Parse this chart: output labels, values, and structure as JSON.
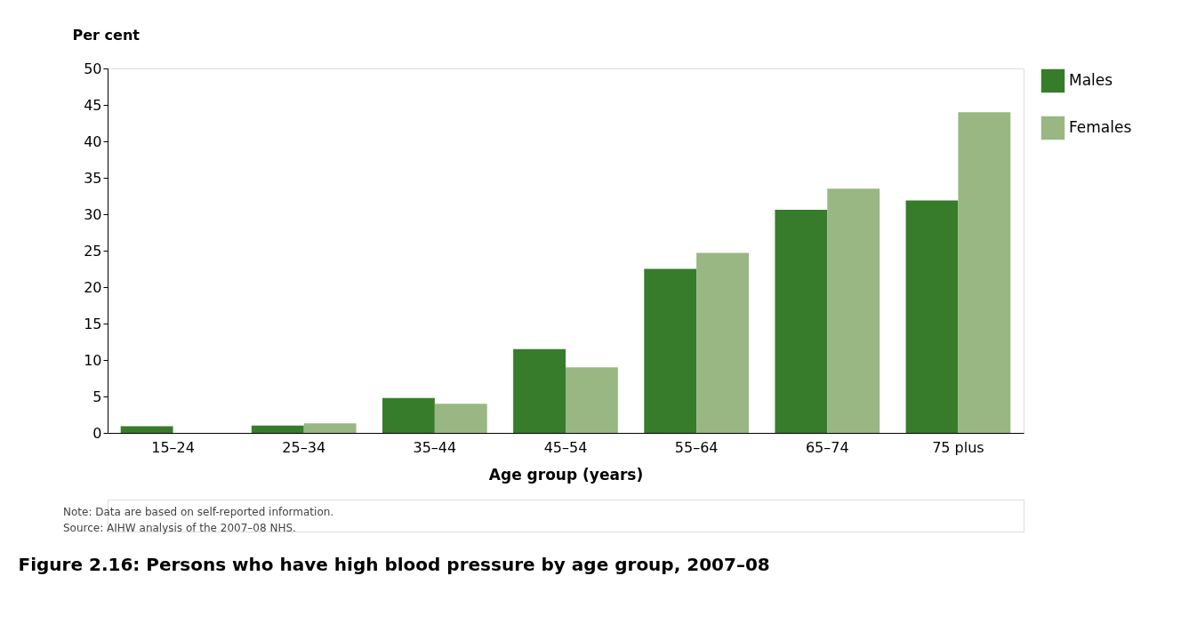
{
  "chart_data": {
    "type": "bar",
    "title": "Figure 2.16: Persons who have high blood pressure by age group, 2007–08",
    "xlabel": "Age group (years)",
    "ylabel": "Per cent",
    "categories": [
      "15–24",
      "25–34",
      "35–44",
      "45–54",
      "55–64",
      "65–74",
      "75 plus"
    ],
    "series": [
      {
        "name": "Males",
        "color": "#367c2b",
        "values": [
          0.9,
          1.0,
          4.8,
          11.5,
          22.5,
          30.6,
          31.9
        ]
      },
      {
        "name": "Females",
        "color": "#98b783",
        "values": [
          0,
          1.3,
          4.0,
          9.0,
          24.7,
          33.5,
          44.0
        ]
      }
    ],
    "ylim": [
      0,
      50
    ],
    "yticks": [
      0,
      5,
      10,
      15,
      20,
      25,
      30,
      35,
      40,
      45,
      50
    ],
    "grid": false,
    "legend": "right",
    "annotations": [
      "Note: Data are based on self-reported information.",
      "Source: AIHW analysis of the 2007–08 NHS."
    ]
  }
}
